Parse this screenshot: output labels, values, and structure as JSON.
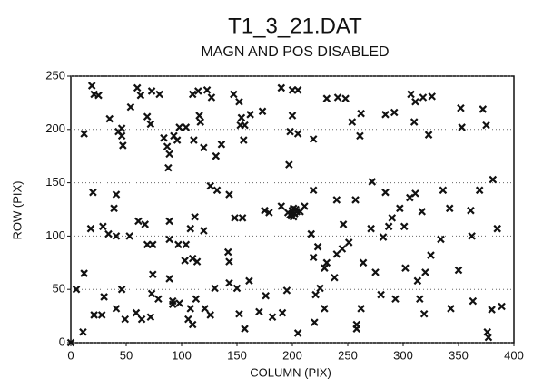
{
  "chart_data": {
    "type": "scatter",
    "title": "T1_3_21.DAT",
    "subtitle": "MAGN AND POS DISABLED",
    "xlabel": "COLUMN (PIX)",
    "ylabel": "ROW (PIX)",
    "color": "#111111",
    "xlim": [
      0,
      400
    ],
    "xticks": [
      0,
      50,
      100,
      150,
      200,
      250,
      300,
      350,
      400
    ],
    "ylim": [
      0,
      250
    ],
    "yticks": [
      0,
      50,
      100,
      150,
      200,
      250
    ],
    "grid": true,
    "x": [
      0,
      19,
      21,
      25,
      12,
      35,
      43,
      46,
      46,
      47,
      54,
      60,
      63,
      73,
      80,
      69,
      72,
      84,
      87,
      89,
      88,
      93,
      96,
      98,
      104,
      110,
      115,
      123,
      127,
      116,
      117,
      111,
      120,
      131,
      136,
      147,
      152,
      154,
      153,
      157,
      156,
      162,
      173,
      190,
      200,
      205,
      200,
      198,
      205,
      219,
      231,
      241,
      248,
      254,
      262,
      261,
      284,
      292,
      307,
      311,
      318,
      326,
      310,
      323,
      352,
      353,
      372,
      375,
      20,
      41,
      39,
      29,
      18,
      34,
      41,
      53,
      61,
      67,
      69,
      74,
      89,
      89,
      97,
      104,
      110,
      103,
      114,
      112,
      108,
      120,
      126,
      132,
      143,
      142,
      143,
      155,
      148,
      175,
      179,
      190,
      197,
      201,
      207,
      211,
      219,
      217,
      219,
      223,
      229,
      240,
      238,
      246,
      240,
      257,
      271,
      282,
      287,
      272,
      284,
      290,
      297,
      301,
      306,
      311,
      317,
      336,
      342,
      361,
      362,
      369,
      381,
      385,
      12,
      5,
      11,
      21,
      28,
      30,
      41,
      46,
      49,
      59,
      64,
      72,
      73,
      79,
      74,
      89,
      92,
      92,
      98,
      106,
      110,
      108,
      113,
      121,
      126,
      130,
      150,
      143,
      152,
      157,
      161,
      170,
      176,
      182,
      191,
      195,
      205,
      220,
      225,
      221,
      229,
      258,
      258,
      262,
      275,
      280,
      293,
      302,
      313,
      315,
      319,
      320,
      325,
      334,
      343,
      350,
      363,
      376,
      377,
      380,
      389,
      231,
      245,
      251,
      264,
      196,
      198,
      200,
      202,
      204,
      199,
      203,
      201
    ],
    "values": [
      0,
      241,
      233,
      232,
      196,
      210,
      198,
      201,
      194,
      185,
      221,
      239,
      232,
      236,
      233,
      212,
      205,
      192,
      184,
      177,
      164,
      194,
      190,
      202,
      202,
      233,
      236,
      237,
      230,
      213,
      207,
      190,
      183,
      175,
      186,
      233,
      226,
      211,
      204,
      204,
      190,
      214,
      217,
      239,
      237,
      237,
      213,
      198,
      196,
      191,
      229,
      230,
      229,
      207,
      215,
      194,
      214,
      216,
      233,
      226,
      230,
      231,
      207,
      195,
      220,
      202,
      219,
      204,
      141,
      139,
      126,
      109,
      107,
      102,
      100,
      100,
      114,
      111,
      92,
      92,
      114,
      97,
      92,
      92,
      79,
      77,
      76,
      118,
      107,
      105,
      147,
      143,
      139,
      85,
      76,
      117,
      117,
      124,
      122,
      128,
      167,
      126,
      123,
      128,
      143,
      102,
      80,
      90,
      70,
      83,
      61,
      111,
      134,
      134,
      107,
      99,
      109,
      151,
      141,
      117,
      126,
      109,
      136,
      140,
      123,
      143,
      126,
      124,
      100,
      143,
      153,
      107,
      65,
      50,
      10,
      26,
      26,
      43,
      32,
      50,
      22,
      28,
      22,
      24,
      46,
      41,
      64,
      60,
      39,
      36,
      37,
      22,
      17,
      32,
      41,
      32,
      26,
      51,
      51,
      56,
      27,
      13,
      58,
      29,
      44,
      24,
      28,
      49,
      9,
      19,
      51,
      45,
      32,
      13,
      17,
      32,
      66,
      45,
      41,
      70,
      58,
      41,
      27,
      66,
      82,
      97,
      32,
      68,
      39,
      10,
      5,
      31,
      34,
      75,
      88,
      94,
      75,
      122,
      120,
      124,
      121,
      123,
      119,
      125,
      118
    ]
  }
}
